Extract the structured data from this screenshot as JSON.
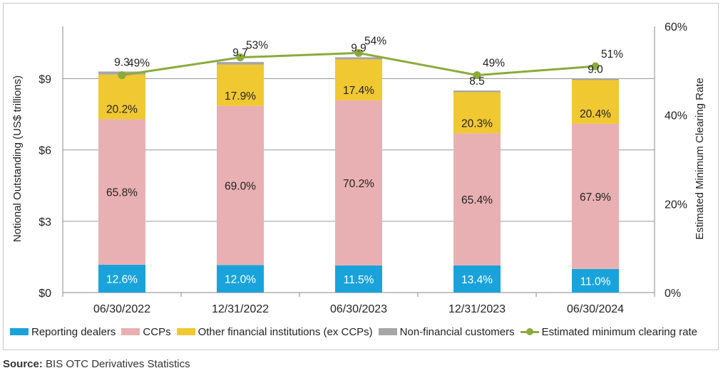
{
  "chart_data": {
    "type": "bar",
    "stacked": true,
    "categories": [
      "06/30/2022",
      "12/31/2022",
      "06/30/2023",
      "12/31/2023",
      "06/30/2024"
    ],
    "totals": [
      9.3,
      9.7,
      9.9,
      8.5,
      9.0
    ],
    "total_labels": [
      "9.3",
      "9.7",
      "9.9",
      "8.5",
      "9.0"
    ],
    "series": [
      {
        "name": "Reporting dealers",
        "color": "#1aa3db",
        "values": [
          1.17,
          1.16,
          1.14,
          1.14,
          0.99
        ],
        "labels": [
          "12.6%",
          "12.0%",
          "11.5%",
          "13.4%",
          "11.0%"
        ]
      },
      {
        "name": "CCPs",
        "color": "#e8b0b2",
        "values": [
          6.12,
          6.69,
          6.95,
          5.56,
          6.11
        ],
        "labels": [
          "65.8%",
          "69.0%",
          "70.2%",
          "65.4%",
          "67.9%"
        ]
      },
      {
        "name": "Other financial institutions (ex CCPs)",
        "color": "#f0c832",
        "values": [
          1.88,
          1.74,
          1.72,
          1.73,
          1.84
        ],
        "labels": [
          "20.2%",
          "17.9%",
          "17.4%",
          "20.3%",
          "20.4%"
        ]
      },
      {
        "name": "Non-financial customers",
        "color": "#a6a6a6",
        "values": [
          0.13,
          0.11,
          0.09,
          0.07,
          0.06
        ],
        "labels": [
          "",
          "",
          "",
          "",
          ""
        ]
      }
    ],
    "line": {
      "name": "Estimated minimum clearing rate",
      "color": "#8aab3c",
      "values": [
        49,
        53,
        54,
        49,
        51
      ],
      "labels": [
        "49%",
        "53%",
        "54%",
        "49%",
        "51%"
      ]
    },
    "ylim": [
      0,
      11.2
    ],
    "yticks": [
      0,
      3,
      6,
      9
    ],
    "ytick_labels": [
      "$0",
      "$3",
      "$6",
      "$9"
    ],
    "y2lim": [
      0,
      60
    ],
    "y2ticks": [
      0,
      20,
      40,
      60
    ],
    "y2tick_labels": [
      "0%",
      "20%",
      "40%",
      "60%"
    ],
    "ylabel": "Notional Outstanding (US$ trillions)",
    "y2label": "Estimated Minimum Clearing Rate",
    "legend_position": "bottom"
  },
  "source": {
    "prefix": "Source:",
    "text": " BIS OTC Derivatives Statistics"
  }
}
